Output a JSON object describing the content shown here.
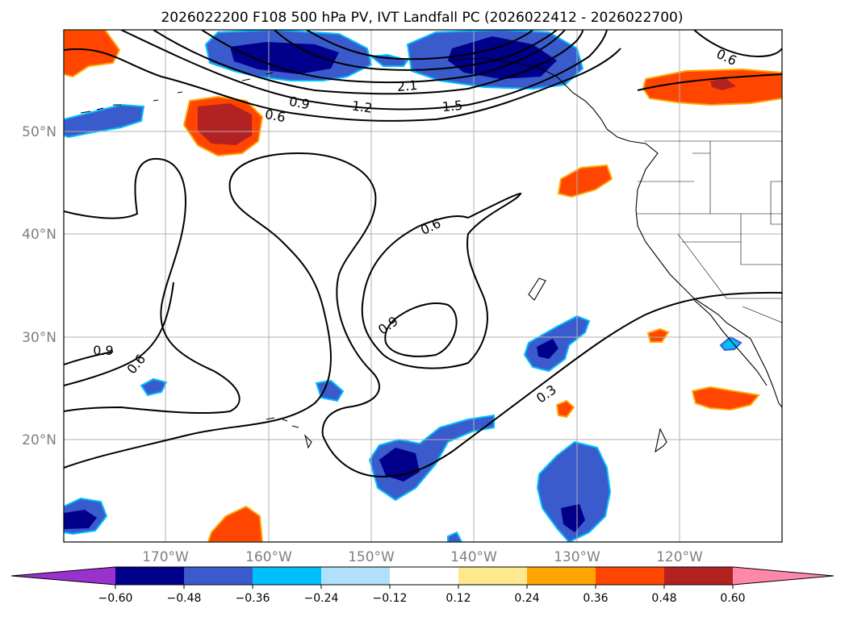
{
  "title": "2026022200 F108 500 hPa PV, IVT Landfall PC (2026022412 - 2026022700)",
  "map": {
    "lat_labels": [
      "50°N",
      "40°N",
      "30°N",
      "20°N"
    ],
    "lon_labels": [
      "170°W",
      "160°W",
      "150°W",
      "140°W",
      "130°W",
      "120°W"
    ],
    "contour_labels": [
      "0.6",
      "0.9",
      "1.2",
      "1.5",
      "2.1",
      "0.6",
      "0.6",
      "0.9",
      "0.9",
      "0.6",
      "0.3"
    ]
  },
  "colorbar": {
    "tick_labels": [
      "−0.60",
      "−0.48",
      "−0.36",
      "−0.24",
      "−0.12",
      "0.12",
      "0.24",
      "0.36",
      "0.48",
      "0.60"
    ],
    "colors": [
      "#9932cc",
      "#00008b",
      "#3a5bcc",
      "#00bfff",
      "#b0e0fa",
      "#ffffff",
      "#ffe88e",
      "#ffa500",
      "#ff4500",
      "#b22222",
      "#ff88aa"
    ]
  }
}
